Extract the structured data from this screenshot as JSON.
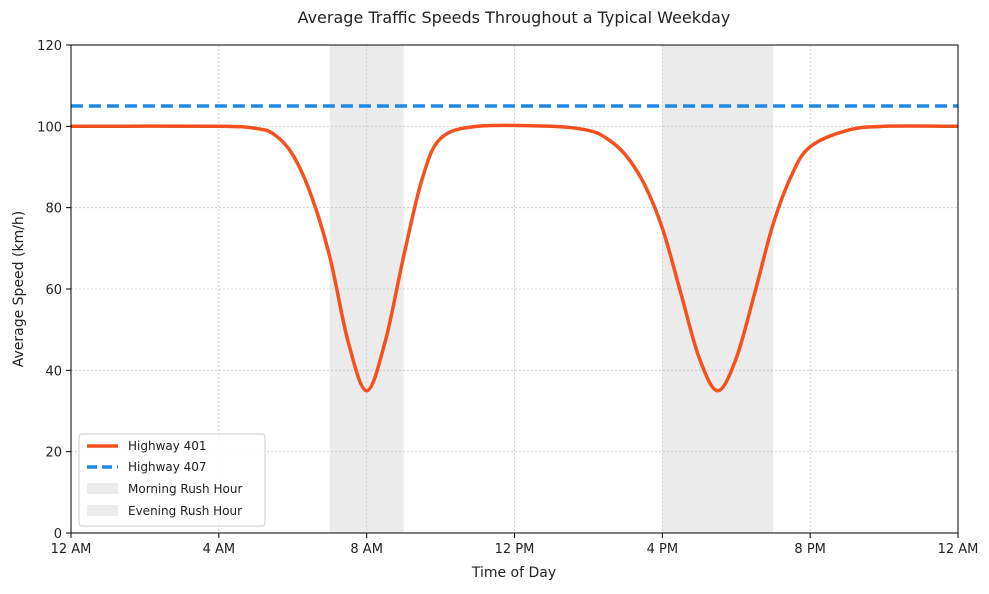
{
  "chart_data": {
    "type": "line",
    "title": "Average Traffic Speeds Throughout a Typical Weekday",
    "xlabel": "Time of Day",
    "ylabel": "Average Speed (km/h)",
    "xlim": [
      0,
      24
    ],
    "ylim": [
      0,
      120
    ],
    "x_ticks": [
      {
        "value": 0,
        "label": "12 AM"
      },
      {
        "value": 4,
        "label": "4 AM"
      },
      {
        "value": 8,
        "label": "8 AM"
      },
      {
        "value": 12,
        "label": "12 PM"
      },
      {
        "value": 16,
        "label": "4 PM"
      },
      {
        "value": 20,
        "label": "8 PM"
      },
      {
        "value": 24,
        "label": "12 AM"
      }
    ],
    "y_ticks": [
      0,
      20,
      40,
      60,
      80,
      100,
      120
    ],
    "grid": true,
    "legend_position": "lower-left",
    "series": [
      {
        "name": "Highway 401",
        "color": "#f4511e",
        "style": "solid",
        "x": [
          0,
          4,
          5,
          5.5,
          6,
          6.5,
          7,
          7.5,
          8,
          8.5,
          9,
          9.5,
          10,
          11,
          13,
          14,
          14.5,
          15,
          15.5,
          16,
          16.5,
          17,
          17.5,
          18,
          18.5,
          19,
          19.5,
          20,
          21,
          22,
          24
        ],
        "y": [
          100,
          100,
          99.5,
          98,
          93,
          83,
          68,
          47,
          35,
          47,
          68,
          87,
          97,
          100,
          100,
          99,
          97,
          93,
          86,
          75,
          59,
          43,
          35,
          43,
          59,
          76,
          88,
          95,
          99,
          100,
          100
        ]
      },
      {
        "name": "Highway 407",
        "color": "#1e88e5",
        "style": "dashed",
        "x": [
          0,
          24
        ],
        "y": [
          105,
          105
        ]
      }
    ],
    "shaded_regions": [
      {
        "name": "Morning Rush Hour",
        "x_start": 7,
        "x_end": 9,
        "color": "#d3d3d3"
      },
      {
        "name": "Evening Rush Hour",
        "x_start": 16,
        "x_end": 19,
        "color": "#d3d3d3"
      }
    ]
  }
}
